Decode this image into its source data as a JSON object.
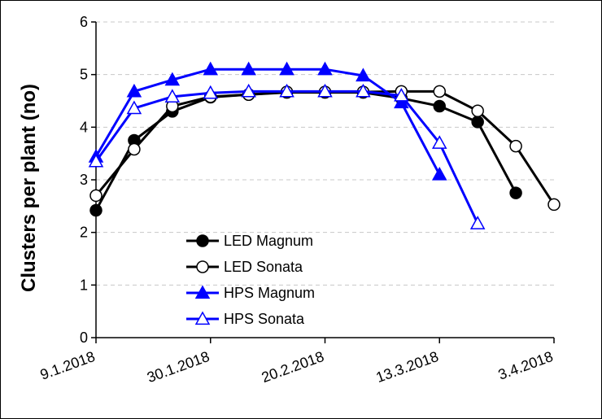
{
  "chart_data": {
    "type": "line",
    "title": "",
    "xlabel": "",
    "ylabel": "Clusters per plant (no)",
    "ylim": [
      0,
      6
    ],
    "yticks": [
      0,
      1,
      2,
      3,
      4,
      5,
      6
    ],
    "xlim_days": [
      0,
      84
    ],
    "x_tick_labels": [
      "9.1.2018",
      "30.1.2018",
      "20.2.2018",
      "13.3.2018",
      "3.4.2018"
    ],
    "x_tick_days": [
      0,
      21,
      42,
      63,
      84
    ],
    "grid": true,
    "legend_position": "lower-left",
    "series": [
      {
        "name": "LED Magnum",
        "color": "#000000",
        "marker": "circle-filled",
        "x": [
          0,
          7,
          14,
          21,
          28,
          35,
          42,
          49,
          56,
          63,
          70,
          77
        ],
        "values": [
          2.42,
          3.75,
          4.3,
          4.57,
          4.62,
          4.66,
          4.66,
          4.66,
          4.55,
          4.4,
          4.1,
          2.75
        ]
      },
      {
        "name": "LED Sonata",
        "color": "#000000",
        "marker": "circle-open",
        "x": [
          0,
          7,
          14,
          21,
          28,
          35,
          42,
          49,
          56,
          63,
          70,
          77,
          84
        ],
        "values": [
          2.7,
          3.58,
          4.4,
          4.58,
          4.62,
          4.67,
          4.67,
          4.67,
          4.68,
          4.68,
          4.31,
          3.64,
          2.53
        ]
      },
      {
        "name": "HPS Magnum",
        "color": "#0000FF",
        "marker": "triangle-filled",
        "x": [
          0,
          7,
          14,
          21,
          28,
          35,
          42,
          49,
          56,
          63
        ],
        "values": [
          3.44,
          4.68,
          4.9,
          5.1,
          5.1,
          5.1,
          5.1,
          4.98,
          4.47,
          3.1
        ]
      },
      {
        "name": "HPS Sonata",
        "color": "#0000FF",
        "marker": "triangle-open",
        "x": [
          0,
          7,
          14,
          21,
          28,
          35,
          42,
          49,
          56,
          63,
          70
        ],
        "values": [
          3.35,
          4.36,
          4.58,
          4.65,
          4.68,
          4.68,
          4.68,
          4.68,
          4.6,
          3.7,
          2.17
        ]
      }
    ]
  }
}
